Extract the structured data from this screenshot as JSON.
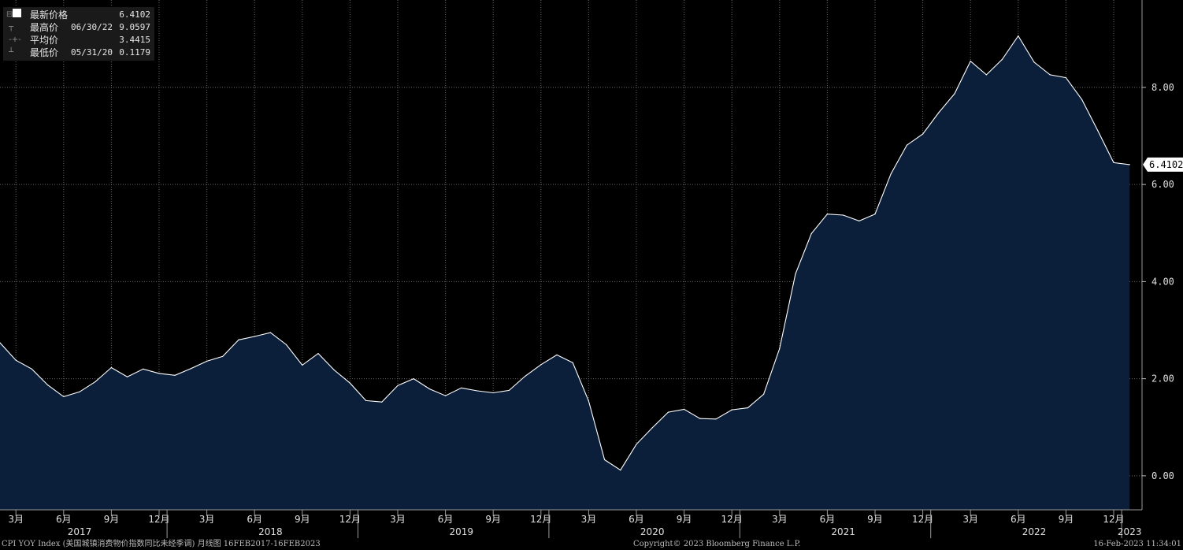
{
  "legend": {
    "latest_label": "最新价格",
    "latest_value": "6.4102",
    "high_label": "最高价",
    "high_date": "06/30/22",
    "high_value": "9.0597",
    "avg_label": "平均价",
    "avg_value": "3.4415",
    "low_label": "最低价",
    "low_date": "05/31/20",
    "low_value": "0.1179"
  },
  "footer": {
    "left": "CPI YOY Index (美国城镇消费物价指数同比未经季调)  月线图 16FEB2017-16FEB2023",
    "center": "Copyright© 2023 Bloomberg Finance L.P.",
    "right": "16-Feb-2023 11:34:01"
  },
  "colors": {
    "background": "#000000",
    "area_fill": "#0c1f3a",
    "line": "#ffffff",
    "grid": "#666666"
  },
  "chart_data": {
    "type": "area",
    "x": [
      "2017-02",
      "2017-03",
      "2017-04",
      "2017-05",
      "2017-06",
      "2017-07",
      "2017-08",
      "2017-09",
      "2017-10",
      "2017-11",
      "2017-12",
      "2018-01",
      "2018-02",
      "2018-03",
      "2018-04",
      "2018-05",
      "2018-06",
      "2018-07",
      "2018-08",
      "2018-09",
      "2018-10",
      "2018-11",
      "2018-12",
      "2019-01",
      "2019-02",
      "2019-03",
      "2019-04",
      "2019-05",
      "2019-06",
      "2019-07",
      "2019-08",
      "2019-09",
      "2019-10",
      "2019-11",
      "2019-12",
      "2020-01",
      "2020-02",
      "2020-03",
      "2020-04",
      "2020-05",
      "2020-06",
      "2020-07",
      "2020-08",
      "2020-09",
      "2020-10",
      "2020-11",
      "2020-12",
      "2021-01",
      "2021-02",
      "2021-03",
      "2021-04",
      "2021-05",
      "2021-06",
      "2021-07",
      "2021-08",
      "2021-09",
      "2021-10",
      "2021-11",
      "2021-12",
      "2022-01",
      "2022-02",
      "2022-03",
      "2022-04",
      "2022-05",
      "2022-06",
      "2022-07",
      "2022-08",
      "2022-09",
      "2022-10",
      "2022-11",
      "2022-12",
      "2023-01"
    ],
    "values": [
      2.74,
      2.38,
      2.2,
      1.87,
      1.63,
      1.73,
      1.94,
      2.23,
      2.04,
      2.2,
      2.11,
      2.07,
      2.21,
      2.36,
      2.46,
      2.8,
      2.87,
      2.95,
      2.7,
      2.28,
      2.52,
      2.18,
      1.91,
      1.55,
      1.52,
      1.86,
      2.0,
      1.79,
      1.65,
      1.81,
      1.75,
      1.71,
      1.76,
      2.05,
      2.29,
      2.49,
      2.33,
      1.54,
      0.33,
      0.1179,
      0.65,
      0.99,
      1.31,
      1.37,
      1.18,
      1.17,
      1.36,
      1.4,
      1.68,
      2.62,
      4.16,
      4.99,
      5.39,
      5.37,
      5.25,
      5.39,
      6.22,
      6.81,
      7.04,
      7.48,
      7.87,
      8.54,
      8.26,
      8.58,
      9.0597,
      8.52,
      8.26,
      8.2,
      7.75,
      7.11,
      6.45,
      6.4102
    ],
    "ylim": [
      -0.7,
      9.8
    ],
    "y_ticks": [
      "0.00",
      "2.00",
      "4.00",
      "6.00",
      "8.00"
    ],
    "last_value_label": "6.4102",
    "x_month_ticks": [
      {
        "date": "2017-03",
        "label": "3月"
      },
      {
        "date": "2017-06",
        "label": "6月"
      },
      {
        "date": "2017-09",
        "label": "9月"
      },
      {
        "date": "2017-12",
        "label": "12月"
      },
      {
        "date": "2018-03",
        "label": "3月"
      },
      {
        "date": "2018-06",
        "label": "6月"
      },
      {
        "date": "2018-09",
        "label": "9月"
      },
      {
        "date": "2018-12",
        "label": "12月"
      },
      {
        "date": "2019-03",
        "label": "3月"
      },
      {
        "date": "2019-06",
        "label": "6月"
      },
      {
        "date": "2019-09",
        "label": "9月"
      },
      {
        "date": "2019-12",
        "label": "12月"
      },
      {
        "date": "2020-03",
        "label": "3月"
      },
      {
        "date": "2020-06",
        "label": "6月"
      },
      {
        "date": "2020-09",
        "label": "9月"
      },
      {
        "date": "2020-12",
        "label": "12月"
      },
      {
        "date": "2021-03",
        "label": "3月"
      },
      {
        "date": "2021-06",
        "label": "6月"
      },
      {
        "date": "2021-09",
        "label": "9月"
      },
      {
        "date": "2021-12",
        "label": "12月"
      },
      {
        "date": "2022-03",
        "label": "3月"
      },
      {
        "date": "2022-06",
        "label": "6月"
      },
      {
        "date": "2022-09",
        "label": "9月"
      },
      {
        "date": "2022-12",
        "label": "12月"
      }
    ],
    "x_year_labels": [
      {
        "date": "2017-07",
        "label": "2017"
      },
      {
        "date": "2018-07",
        "label": "2018"
      },
      {
        "date": "2019-07",
        "label": "2019"
      },
      {
        "date": "2020-07",
        "label": "2020"
      },
      {
        "date": "2021-07",
        "label": "2021"
      },
      {
        "date": "2022-07",
        "label": "2022"
      },
      {
        "date": "2023-01",
        "label": "2023"
      }
    ],
    "grid": true
  }
}
